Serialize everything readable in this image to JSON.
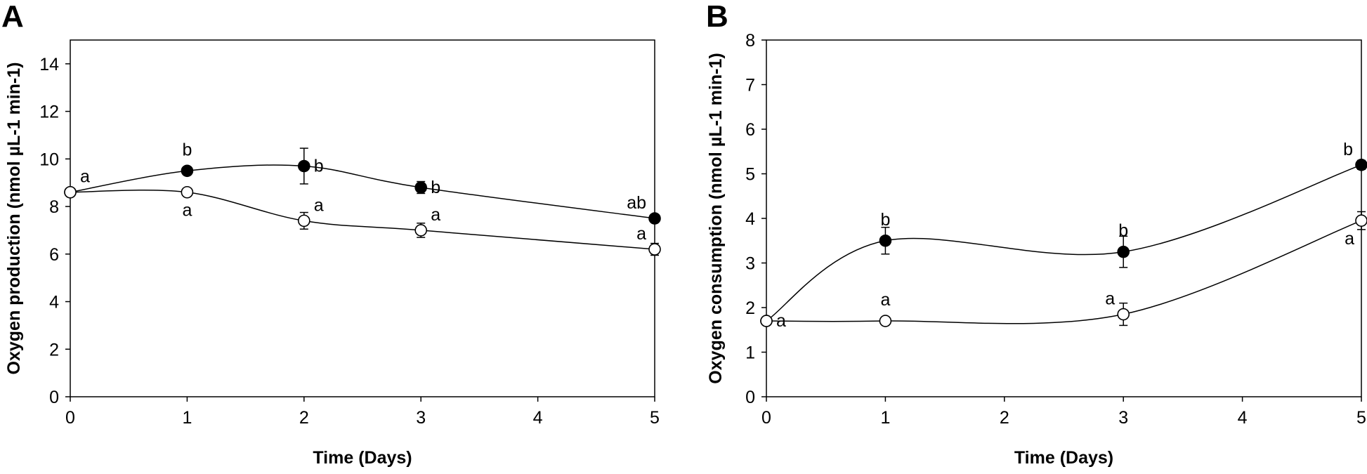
{
  "chart_data": [
    {
      "panel": "A",
      "type": "line",
      "xlabel": "Time (Days)",
      "ylabel": "Oxygen production (nmol µL-1 min-1)",
      "xlim": [
        0,
        5
      ],
      "ylim": [
        0,
        15
      ],
      "xticks": [
        "0",
        "1",
        "2",
        "3",
        "4",
        "5"
      ],
      "yticks": [
        "0",
        "2",
        "4",
        "6",
        "8",
        "10",
        "12",
        "14"
      ],
      "xtick_values": [
        0,
        1,
        2,
        3,
        4,
        5
      ],
      "ytick_values": [
        0,
        2,
        4,
        6,
        8,
        10,
        12,
        14
      ],
      "grid": false,
      "series": [
        {
          "marker": "filled-circle",
          "x": [
            0,
            1,
            2,
            3,
            5
          ],
          "y": [
            8.6,
            9.5,
            9.7,
            8.8,
            7.5
          ],
          "err": [
            0,
            0.15,
            0.75,
            0.25,
            0.1
          ],
          "labels": [
            "a",
            "b",
            "b",
            "b",
            "ab"
          ],
          "label_pos": [
            "above-right",
            "above",
            "right",
            "right",
            "above-left"
          ]
        },
        {
          "marker": "open-circle",
          "x": [
            0,
            1,
            2,
            3,
            5
          ],
          "y": [
            8.6,
            8.6,
            7.4,
            7.0,
            6.2
          ],
          "err": [
            0,
            0.1,
            0.35,
            0.3,
            0.25
          ],
          "labels": [
            "",
            "a",
            "a",
            "a",
            "a"
          ],
          "label_pos": [
            "",
            "below",
            "above-right",
            "above-right",
            "above-left"
          ]
        }
      ]
    },
    {
      "panel": "B",
      "type": "line",
      "xlabel": "Time (Days)",
      "ylabel": "Oxygen consumption (nmol µL-1 min-1)",
      "xlim": [
        0,
        5
      ],
      "ylim": [
        0,
        8
      ],
      "xticks": [
        "0",
        "1",
        "2",
        "3",
        "4",
        "5"
      ],
      "yticks": [
        "0",
        "1",
        "2",
        "3",
        "4",
        "5",
        "6",
        "7",
        "8"
      ],
      "xtick_values": [
        0,
        1,
        2,
        3,
        4,
        5
      ],
      "ytick_values": [
        0,
        1,
        2,
        3,
        4,
        5,
        6,
        7,
        8
      ],
      "grid": false,
      "series": [
        {
          "marker": "filled-circle",
          "x": [
            0,
            1,
            3,
            5
          ],
          "y": [
            1.7,
            3.5,
            3.25,
            5.2
          ],
          "err": [
            0,
            0.3,
            0.35,
            0.1
          ],
          "labels": [
            "a",
            "b",
            "b",
            "b"
          ],
          "label_pos": [
            "right",
            "above",
            "above",
            "above-left"
          ]
        },
        {
          "marker": "open-circle",
          "x": [
            0,
            1,
            3,
            5
          ],
          "y": [
            1.7,
            1.7,
            1.85,
            3.95
          ],
          "err": [
            0,
            0.05,
            0.25,
            0.2
          ],
          "labels": [
            "",
            "a",
            "a",
            "a"
          ],
          "label_pos": [
            "",
            "above",
            "above-left",
            "below-left"
          ]
        }
      ]
    }
  ]
}
